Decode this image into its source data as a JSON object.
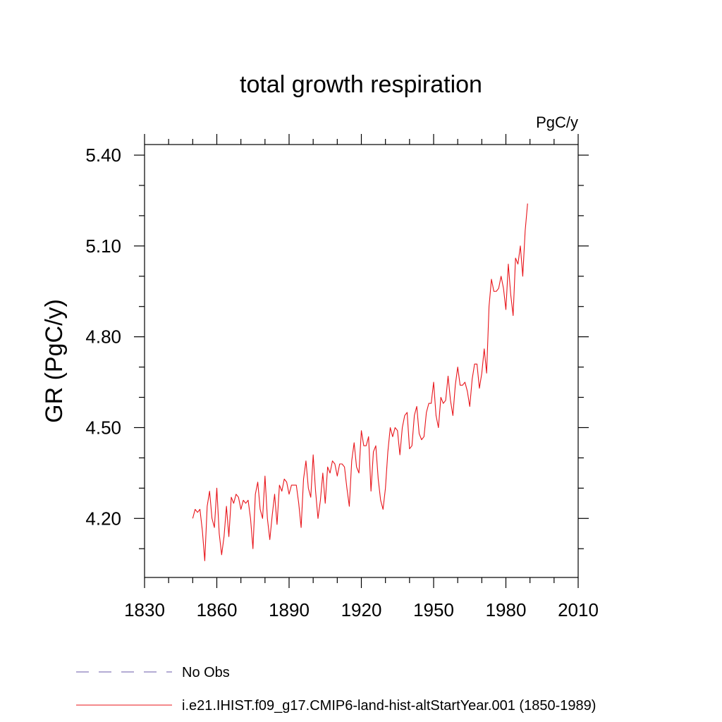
{
  "chart_data": {
    "type": "line",
    "title": "total growth respiration",
    "units_label": "PgC/y",
    "ylabel": "GR  (PgC/y)",
    "xlabel": "",
    "xlim": [
      1830,
      2010
    ],
    "ylim": [
      4.005,
      5.435
    ],
    "xticks": [
      1830,
      1860,
      1890,
      1920,
      1950,
      1980,
      2010
    ],
    "yticks": [
      {
        "value": 4.2,
        "label": "4.20"
      },
      {
        "value": 4.5,
        "label": "4.50"
      },
      {
        "value": 4.8,
        "label": "4.80"
      },
      {
        "value": 5.1,
        "label": "5.10"
      },
      {
        "value": 5.4,
        "label": "5.40"
      }
    ],
    "grid": false,
    "legend_position": "bottom",
    "legend": [
      {
        "label": "No Obs",
        "color": "#6a5aa8",
        "style": "dashed"
      },
      {
        "label": "i.e21.IHIST.f09_g17.CMIP6-land-hist-altStartYear.001 (1850-1989)",
        "color": "#e8141a",
        "style": "solid"
      }
    ],
    "series": [
      {
        "color": "#e8141a",
        "x_start": 1850,
        "x_step": 1,
        "values": [
          4.2,
          4.23,
          4.22,
          4.23,
          4.16,
          4.06,
          4.24,
          4.29,
          4.2,
          4.17,
          4.3,
          4.15,
          4.08,
          4.14,
          4.24,
          4.14,
          4.27,
          4.25,
          4.28,
          4.27,
          4.23,
          4.26,
          4.25,
          4.26,
          4.2,
          4.1,
          4.28,
          4.32,
          4.23,
          4.2,
          4.34,
          4.2,
          4.13,
          4.21,
          4.28,
          4.18,
          4.31,
          4.29,
          4.33,
          4.32,
          4.28,
          4.31,
          4.31,
          4.31,
          4.25,
          4.17,
          4.33,
          4.39,
          4.3,
          4.27,
          4.41,
          4.29,
          4.2,
          4.26,
          4.35,
          4.25,
          4.37,
          4.35,
          4.39,
          4.38,
          4.34,
          4.38,
          4.38,
          4.37,
          4.3,
          4.24,
          4.39,
          4.45,
          4.37,
          4.35,
          4.49,
          4.44,
          4.44,
          4.47,
          4.29,
          4.42,
          4.44,
          4.33,
          4.26,
          4.23,
          4.3,
          4.42,
          4.5,
          4.47,
          4.5,
          4.49,
          4.41,
          4.5,
          4.54,
          4.55,
          4.43,
          4.44,
          4.54,
          4.57,
          4.48,
          4.46,
          4.47,
          4.55,
          4.58,
          4.58,
          4.65,
          4.54,
          4.5,
          4.6,
          4.58,
          4.59,
          4.67,
          4.59,
          4.54,
          4.64,
          4.7,
          4.64,
          4.64,
          4.65,
          4.62,
          4.57,
          4.66,
          4.71,
          4.71,
          4.63,
          4.68,
          4.76,
          4.68,
          4.9,
          4.99,
          4.95,
          4.95,
          4.96,
          5.0,
          4.96,
          4.89,
          5.04,
          4.94,
          4.87,
          5.06,
          5.04,
          5.1,
          5.0,
          5.15,
          5.24
        ]
      }
    ]
  }
}
